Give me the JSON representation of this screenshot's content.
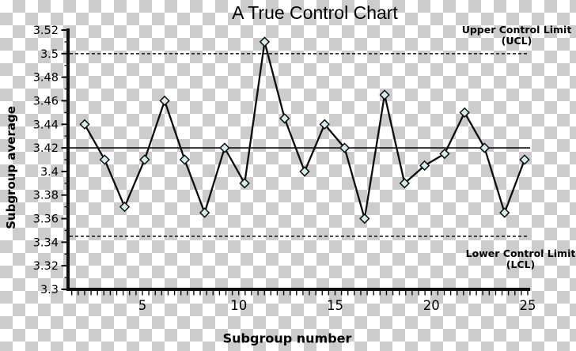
{
  "title": "A True Control Chart",
  "axis": {
    "x_label": "Subgroup number",
    "y_label": "Subgroup average"
  },
  "annotations": {
    "ucl_line1": "Upper Control Limit",
    "ucl_line2": "(UCL)",
    "lcl_line1": "Lower Control Limit",
    "lcl_line2": "(LCL)"
  },
  "colors": {
    "line": "#0d0d0d",
    "marker_fill": "#d2edf0",
    "checker_gray": "#cccccc"
  },
  "chart_data": {
    "type": "line",
    "title": "A True Control Chart",
    "xlabel": "Subgroup number",
    "ylabel": "Subgroup average",
    "series_name": "Subgroup average",
    "x": [
      1,
      2,
      3,
      4,
      5,
      6,
      7,
      8,
      9,
      10,
      11,
      12,
      13,
      14,
      15,
      16,
      17,
      18,
      19,
      20,
      21,
      22,
      23
    ],
    "values": [
      3.44,
      3.41,
      3.37,
      3.41,
      3.46,
      3.41,
      3.365,
      3.42,
      3.39,
      3.51,
      3.445,
      3.4,
      3.44,
      3.42,
      3.36,
      3.465,
      3.39,
      3.405,
      3.415,
      3.45,
      3.42,
      3.365,
      3.41
    ],
    "center_line": 3.42,
    "ucl": 3.5,
    "lcl": 3.345,
    "ylim": [
      3.3,
      3.52
    ],
    "y_tick_step": 0.01,
    "y_label_step": 0.02,
    "y_tick_labels": [
      "3.52",
      "3.5",
      "3.48",
      "3.46",
      "3.44",
      "3.42",
      "3.4",
      "3.38",
      "3.36",
      "3.34",
      "3.32",
      "3.3"
    ],
    "x_tick_labels": [
      "5",
      "10",
      "15",
      "20",
      "25"
    ],
    "marker": "diamond",
    "grid": "off",
    "legend": "none"
  }
}
